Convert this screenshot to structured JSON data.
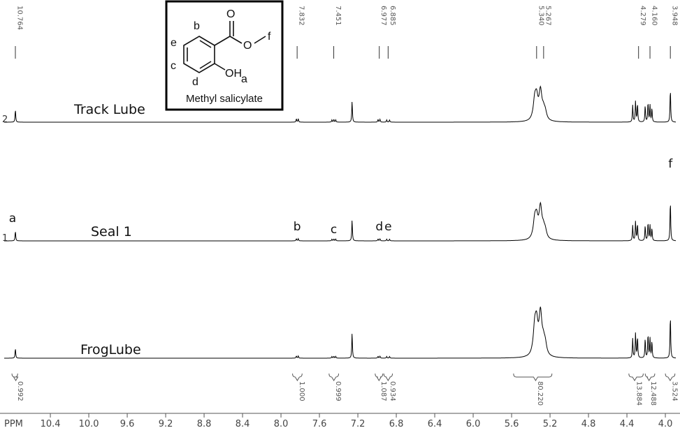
{
  "chart_data": {
    "type": "line",
    "xlabel": "PPM",
    "x_ticks": [
      10.4,
      10.0,
      9.6,
      9.2,
      8.8,
      8.4,
      8.0,
      7.6,
      7.2,
      6.8,
      6.4,
      6.0,
      5.6,
      5.2,
      4.8,
      4.4,
      4.0
    ],
    "x_tick_labels": [
      "10.4",
      "10.0",
      "9.6",
      "9.2",
      "8.8",
      "8.4",
      "8.0",
      "7.6",
      "7.2",
      "6.8",
      "6.4",
      "6.0",
      "5.6",
      "5.2",
      "4.8",
      "4.4",
      "4.0"
    ],
    "xlim": [
      10.8,
      3.9
    ],
    "x_reversed": true,
    "grid": false,
    "peak_labels": [
      {
        "ppm": 10.764,
        "text": "10.764"
      },
      {
        "ppm": 7.832,
        "text": "7.832"
      },
      {
        "ppm": 7.451,
        "text": "7.451"
      },
      {
        "ppm": 6.977,
        "text": "6.977"
      },
      {
        "ppm": 6.885,
        "text": "6.885"
      },
      {
        "ppm": 5.34,
        "text": "5.340"
      },
      {
        "ppm": 5.267,
        "text": "5.267"
      },
      {
        "ppm": 4.279,
        "text": "4.279"
      },
      {
        "ppm": 4.16,
        "text": "4.160"
      },
      {
        "ppm": 3.948,
        "text": "3.948"
      }
    ],
    "integrals": [
      {
        "from": 10.8,
        "to": 10.74,
        "label_ppm": 10.76,
        "text": "0.992"
      },
      {
        "from": 7.88,
        "to": 7.78,
        "label_ppm": 7.83,
        "text": "1.000"
      },
      {
        "from": 7.5,
        "to": 7.4,
        "label_ppm": 7.45,
        "text": "0.999"
      },
      {
        "from": 7.02,
        "to": 6.94,
        "label_ppm": 6.98,
        "text": "1.087"
      },
      {
        "from": 6.93,
        "to": 6.84,
        "label_ppm": 6.885,
        "text": "0.934"
      },
      {
        "from": 5.58,
        "to": 5.18,
        "label_ppm": 5.35,
        "text": "80.220"
      },
      {
        "from": 4.38,
        "to": 4.23,
        "label_ppm": 4.32,
        "text": "13.884"
      },
      {
        "from": 4.21,
        "to": 4.11,
        "label_ppm": 4.17,
        "text": "12.488"
      },
      {
        "from": 4.0,
        "to": 3.9,
        "label_ppm": 3.95,
        "text": "3.524"
      }
    ],
    "series": [
      {
        "name": "Track Lube",
        "index": "2",
        "peaks": [
          {
            "ppm": 10.764,
            "height": 0.45
          },
          {
            "ppm": 7.84,
            "height": 0.12
          },
          {
            "ppm": 7.82,
            "height": 0.12
          },
          {
            "ppm": 7.47,
            "height": 0.08
          },
          {
            "ppm": 7.45,
            "height": 0.1
          },
          {
            "ppm": 7.43,
            "height": 0.08
          },
          {
            "ppm": 7.26,
            "height": 0.75
          },
          {
            "ppm": 6.99,
            "height": 0.1
          },
          {
            "ppm": 6.97,
            "height": 0.1
          },
          {
            "ppm": 6.9,
            "height": 0.08
          },
          {
            "ppm": 6.87,
            "height": 0.08
          },
          {
            "ppm": 5.36,
            "height": 0.65
          },
          {
            "ppm": 5.34,
            "height": 0.7
          },
          {
            "ppm": 5.3,
            "height": 1.0
          },
          {
            "ppm": 5.27,
            "height": 0.3
          },
          {
            "ppm": 5.25,
            "height": 0.25
          },
          {
            "ppm": 4.34,
            "height": 0.6
          },
          {
            "ppm": 4.31,
            "height": 0.75
          },
          {
            "ppm": 4.29,
            "height": 0.65
          },
          {
            "ppm": 4.21,
            "height": 0.6
          },
          {
            "ppm": 4.18,
            "height": 0.7
          },
          {
            "ppm": 4.16,
            "height": 0.6
          },
          {
            "ppm": 4.14,
            "height": 0.5
          },
          {
            "ppm": 3.948,
            "height": 1.2
          }
        ]
      },
      {
        "name": "Seal 1",
        "index": "1",
        "peaks": [
          {
            "ppm": 10.764,
            "height": 0.35
          },
          {
            "ppm": 7.84,
            "height": 0.08
          },
          {
            "ppm": 7.82,
            "height": 0.08
          },
          {
            "ppm": 7.47,
            "height": 0.06
          },
          {
            "ppm": 7.45,
            "height": 0.07
          },
          {
            "ppm": 7.43,
            "height": 0.06
          },
          {
            "ppm": 7.26,
            "height": 0.75
          },
          {
            "ppm": 6.99,
            "height": 0.07
          },
          {
            "ppm": 6.97,
            "height": 0.07
          },
          {
            "ppm": 6.9,
            "height": 0.06
          },
          {
            "ppm": 6.87,
            "height": 0.06
          },
          {
            "ppm": 5.36,
            "height": 0.6
          },
          {
            "ppm": 5.34,
            "height": 0.65
          },
          {
            "ppm": 5.3,
            "height": 1.1
          },
          {
            "ppm": 5.27,
            "height": 0.3
          },
          {
            "ppm": 5.25,
            "height": 0.25
          },
          {
            "ppm": 4.34,
            "height": 0.55
          },
          {
            "ppm": 4.31,
            "height": 0.7
          },
          {
            "ppm": 4.29,
            "height": 0.6
          },
          {
            "ppm": 4.21,
            "height": 0.55
          },
          {
            "ppm": 4.18,
            "height": 0.65
          },
          {
            "ppm": 4.16,
            "height": 0.55
          },
          {
            "ppm": 4.14,
            "height": 0.45
          },
          {
            "ppm": 3.948,
            "height": 1.45
          }
        ]
      },
      {
        "name": "FrogLube",
        "index": "",
        "peaks": [
          {
            "ppm": 10.764,
            "height": 0.35
          },
          {
            "ppm": 7.84,
            "height": 0.08
          },
          {
            "ppm": 7.82,
            "height": 0.08
          },
          {
            "ppm": 7.47,
            "height": 0.06
          },
          {
            "ppm": 7.45,
            "height": 0.07
          },
          {
            "ppm": 7.43,
            "height": 0.06
          },
          {
            "ppm": 7.26,
            "height": 0.9
          },
          {
            "ppm": 6.99,
            "height": 0.07
          },
          {
            "ppm": 6.97,
            "height": 0.07
          },
          {
            "ppm": 6.9,
            "height": 0.06
          },
          {
            "ppm": 6.87,
            "height": 0.06
          },
          {
            "ppm": 5.36,
            "height": 0.9
          },
          {
            "ppm": 5.34,
            "height": 1.0
          },
          {
            "ppm": 5.3,
            "height": 1.45
          },
          {
            "ppm": 5.27,
            "height": 0.4
          },
          {
            "ppm": 5.25,
            "height": 0.35
          },
          {
            "ppm": 4.34,
            "height": 0.7
          },
          {
            "ppm": 4.31,
            "height": 0.9
          },
          {
            "ppm": 4.29,
            "height": 0.75
          },
          {
            "ppm": 4.21,
            "height": 0.7
          },
          {
            "ppm": 4.18,
            "height": 0.85
          },
          {
            "ppm": 4.16,
            "height": 0.7
          },
          {
            "ppm": 4.14,
            "height": 0.6
          },
          {
            "ppm": 3.948,
            "height": 1.55
          }
        ]
      }
    ],
    "assignments": [
      {
        "label": "a",
        "ppm": 10.764
      },
      {
        "label": "b",
        "ppm": 7.832
      },
      {
        "label": "c",
        "ppm": 7.451
      },
      {
        "label": "d",
        "ppm": 6.977
      },
      {
        "label": "e",
        "ppm": 6.885
      },
      {
        "label": "f",
        "ppm": 3.948
      }
    ],
    "inset": {
      "compound_name": "Methyl salicylate",
      "atom_labels": {
        "O_carbonyl": "O",
        "O_ester": "O",
        "methyl": "f",
        "hydroxyl": "OH",
        "hydroxyl_sub": "a",
        "b": "b",
        "c": "c",
        "d": "d",
        "e": "e"
      }
    }
  }
}
